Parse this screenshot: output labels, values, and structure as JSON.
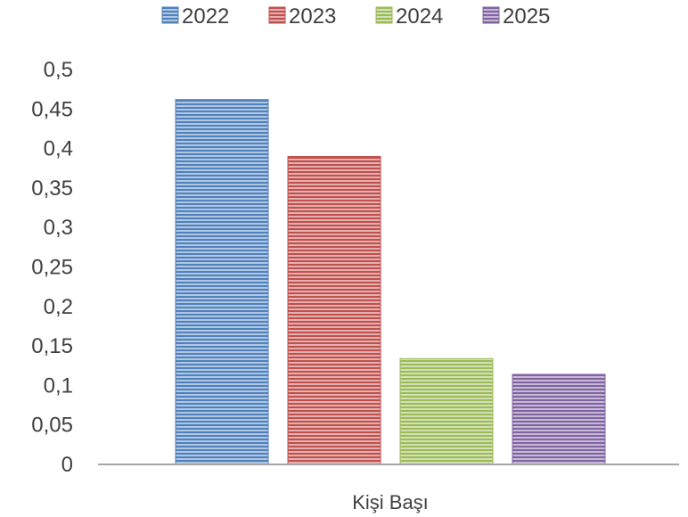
{
  "chart_data": {
    "type": "bar",
    "categories": [
      "Kişi Başı"
    ],
    "series": [
      {
        "name": "2022",
        "values": [
          0.462
        ],
        "color": "#4f81bd"
      },
      {
        "name": "2023",
        "values": [
          0.39
        ],
        "color": "#c0504d"
      },
      {
        "name": "2024",
        "values": [
          0.134
        ],
        "color": "#9bbb59"
      },
      {
        "name": "2025",
        "values": [
          0.114
        ],
        "color": "#8064a2"
      }
    ],
    "yticks": [
      "0",
      "0,05",
      "0,1",
      "0,15",
      "0,2",
      "0,25",
      "0,3",
      "0,35",
      "0,4",
      "0,45",
      "0,5"
    ],
    "ylim": [
      0,
      0.5
    ],
    "grid": false,
    "legend": "top",
    "bar_pattern": "horizontal-stripes"
  }
}
